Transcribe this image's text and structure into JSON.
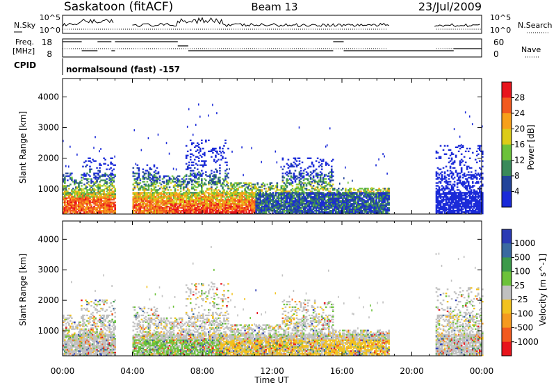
{
  "header": {
    "station": "Saskatoon (fitACF)",
    "beam": "Beam 13",
    "date": "23/Jul/2009"
  },
  "noise_panel": {
    "left_label": "N.Sky",
    "left_ticks": [
      "10^5",
      "10^0"
    ],
    "right_ticks": [
      "10^5",
      "10^0"
    ],
    "right_label": "N.Search"
  },
  "freq_panel": {
    "left_label_top": "Freq.",
    "left_label_bottom": "[MHz]",
    "left_ticks": [
      "18",
      "8"
    ],
    "right_ticks": [
      "60",
      "0"
    ],
    "right_label": "Nave"
  },
  "cpid": {
    "label": "CPID",
    "program": "normalsound (fast) -157"
  },
  "chart_data": [
    {
      "type": "heatmap",
      "title": "",
      "xlabel": "Time UT",
      "ylabel": "Slant Range [km]",
      "x_ticks": [
        "00:00",
        "04:00",
        "08:00",
        "12:00",
        "16:00",
        "20:00",
        "00:00"
      ],
      "y_ticks": [
        "1000",
        "2000",
        "3000",
        "4000"
      ],
      "colorbar_label": "Power [dB]",
      "colorbar_ticks": [
        "28",
        "24",
        "20",
        "16",
        "12",
        "8",
        "4"
      ],
      "colors": [
        "#e8141c",
        "#f25a1e",
        "#f7a01a",
        "#dccc18",
        "#6cc23a",
        "#3a8a5a",
        "#22449a",
        "#1a2ad8"
      ],
      "data_gaps_hours": [
        [
          3.0,
          4.0
        ],
        [
          18.7,
          21.3
        ]
      ]
    },
    {
      "type": "heatmap",
      "title": "",
      "xlabel": "Time UT",
      "ylabel": "Slant Range [km]",
      "x_ticks": [
        "00:00",
        "04:00",
        "08:00",
        "12:00",
        "16:00",
        "20:00",
        "00:00"
      ],
      "y_ticks": [
        "1000",
        "2000",
        "3000",
        "4000"
      ],
      "colorbar_label": "Velocity [m s^-1]",
      "colorbar_ticks": [
        "1000",
        "500",
        "100",
        "25",
        "-25",
        "-100",
        "-500",
        "-1000"
      ],
      "colors": [
        "#2a3ab4",
        "#3a6aa0",
        "#3c9a4a",
        "#6cc23a",
        "#c0c0c0",
        "#f2c21e",
        "#f59a1e",
        "#f25a1e",
        "#e8141c"
      ],
      "data_gaps_hours": [
        [
          3.0,
          4.0
        ],
        [
          18.7,
          21.3
        ]
      ]
    }
  ]
}
